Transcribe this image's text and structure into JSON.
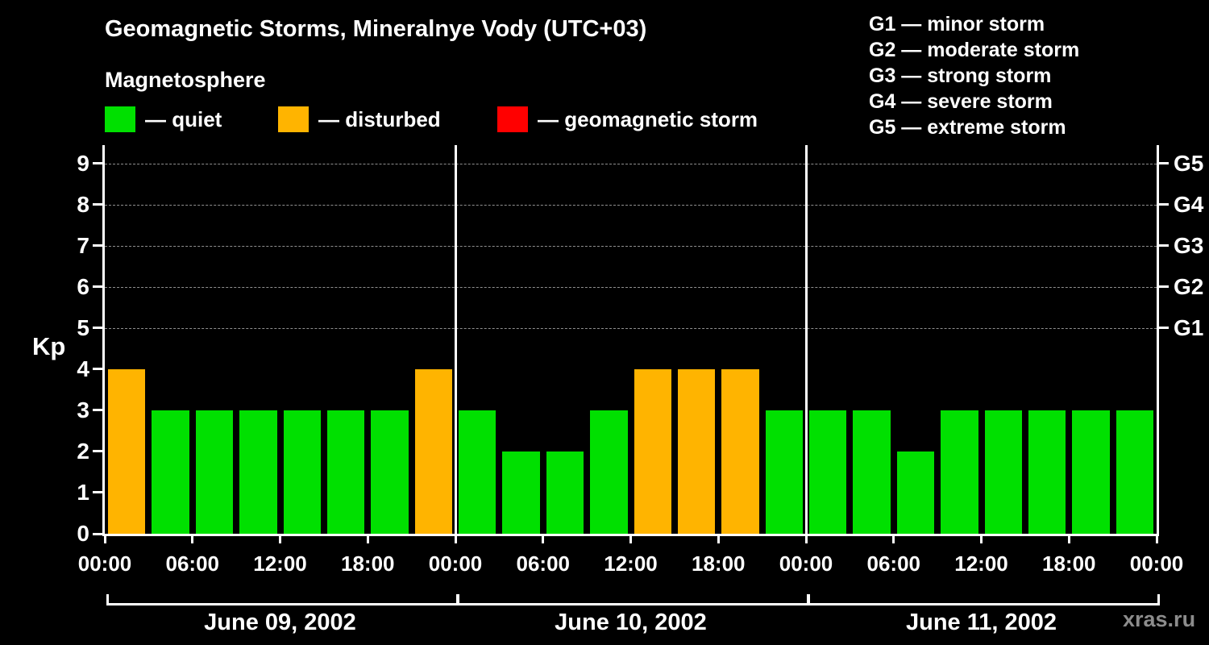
{
  "title": "Geomagnetic Storms, Mineralnye Vody (UTC+03)",
  "legend": {
    "title": "Magnetosphere",
    "items": [
      {
        "name": "quiet",
        "label": "— quiet",
        "color": "#00e000"
      },
      {
        "name": "disturbed",
        "label": "— disturbed",
        "color": "#ffb400"
      },
      {
        "name": "storm",
        "label": "— geomagnetic storm",
        "color": "#ff0000"
      }
    ]
  },
  "g_legend": [
    "G1 — minor storm",
    "G2 — moderate storm",
    "G3 — strong storm",
    "G4 — severe storm",
    "G5 — extreme storm"
  ],
  "watermark": "xras.ru",
  "chart_data": {
    "type": "bar",
    "title": "Geomagnetic Storms, Mineralnye Vody (UTC+03)",
    "xlabel": "",
    "ylabel": "Kp",
    "ylim": [
      0,
      9.45
    ],
    "y_ticks": [
      0,
      1,
      2,
      3,
      4,
      5,
      6,
      7,
      8,
      9
    ],
    "grid_levels": [
      5,
      6,
      7,
      8,
      9
    ],
    "grid": "dashed-horizontal-at-G-levels",
    "legend_position": "top",
    "right_axis": [
      {
        "label": "G1",
        "kp": 5
      },
      {
        "label": "G2",
        "kp": 6
      },
      {
        "label": "G3",
        "kp": 7
      },
      {
        "label": "G4",
        "kp": 8
      },
      {
        "label": "G5",
        "kp": 9
      }
    ],
    "hours_per_bar": 3,
    "x_tick_labels": [
      "00:00",
      "06:00",
      "12:00",
      "18:00",
      "00:00",
      "06:00",
      "12:00",
      "18:00",
      "00:00",
      "06:00",
      "12:00",
      "18:00",
      "00:00"
    ],
    "days": [
      {
        "date": "June 09, 2002",
        "kp": [
          4,
          3,
          3,
          3,
          3,
          3,
          3,
          4
        ]
      },
      {
        "date": "June 10, 2002",
        "kp": [
          3,
          2,
          2,
          3,
          4,
          4,
          4,
          3
        ]
      },
      {
        "date": "June 11, 2002",
        "kp": [
          3,
          3,
          2,
          3,
          3,
          3,
          3,
          3
        ]
      }
    ],
    "colors": {
      "quiet": "#00e000",
      "disturbed": "#ffb400",
      "storm": "#ff0000"
    },
    "thresholds": {
      "disturbed_min": 4,
      "storm_min": 5
    }
  }
}
